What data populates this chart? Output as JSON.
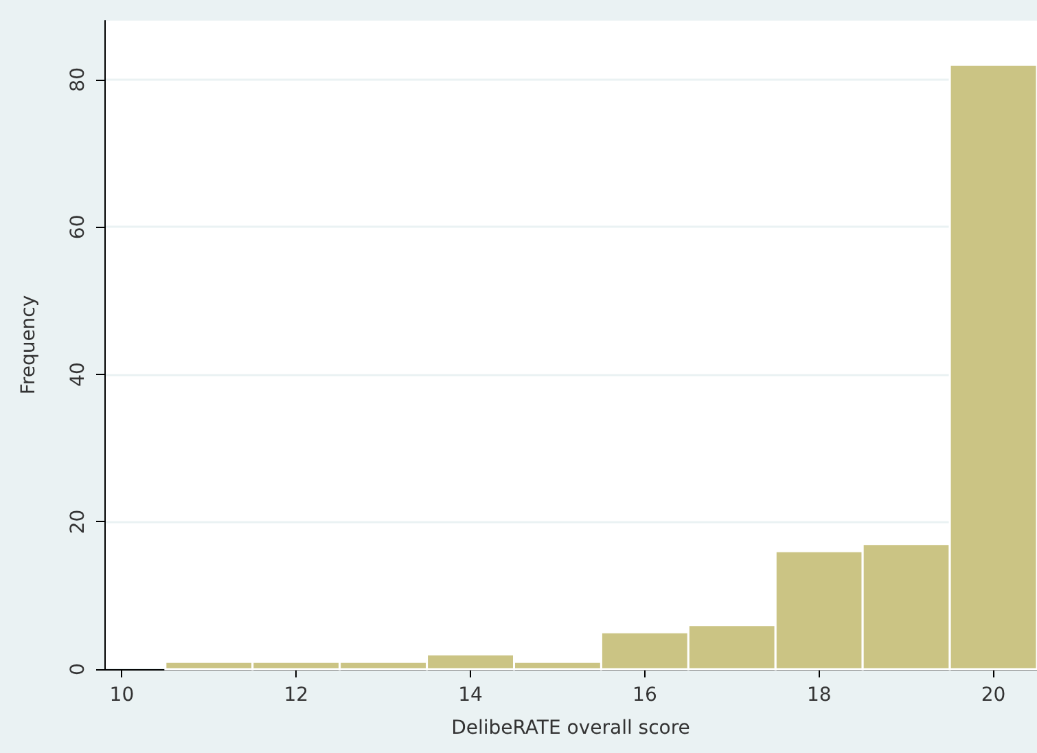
{
  "chart_data": {
    "type": "histogram",
    "xlabel": "DelibeRATE overall score",
    "ylabel": "Frequency",
    "bins": [
      10.5,
      11.5,
      12.5,
      13.5,
      14.5,
      15.5,
      16.5,
      17.5,
      18.5,
      19.5,
      20.5
    ],
    "values": [
      1,
      1,
      1,
      2,
      1,
      5,
      6,
      16,
      17,
      82
    ],
    "color": "#cbc484",
    "xlim": [
      9.8,
      20.5
    ],
    "xticks": [
      10,
      12,
      14,
      16,
      18,
      20
    ],
    "ylim": [
      0,
      88
    ],
    "yticks": [
      0,
      20,
      40,
      60,
      80
    ],
    "grid": "y"
  }
}
